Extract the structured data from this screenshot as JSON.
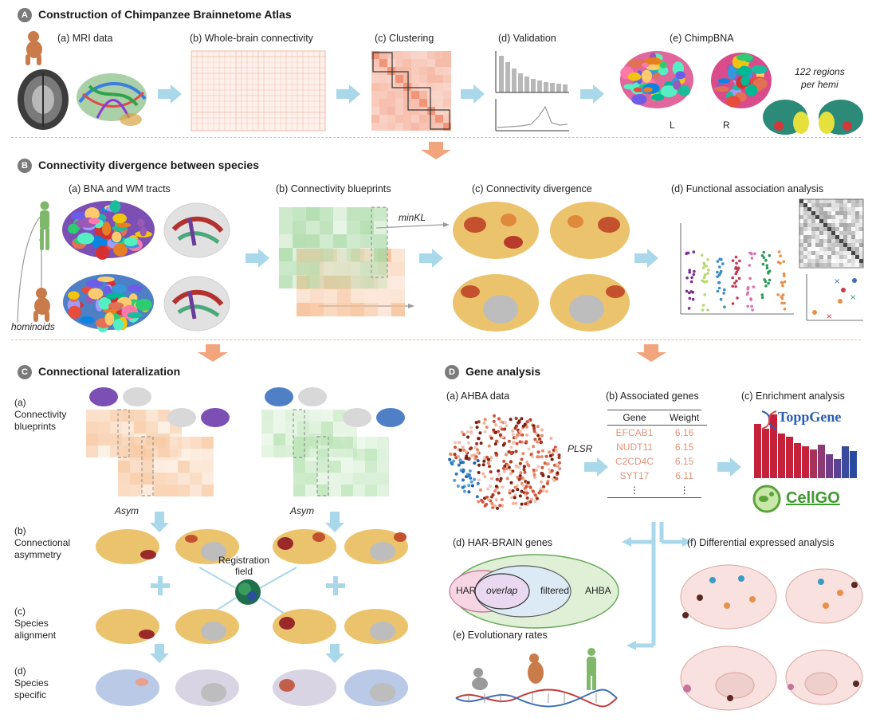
{
  "section_a": {
    "letter": "A",
    "title": "Construction of Chimpanzee Brainnetome Atlas",
    "steps": [
      "(a) MRI data",
      "(b) Whole-brain connectivity",
      "(c) Clustering",
      "(d) Validation",
      "(e) ChimpBNA"
    ],
    "regions_note_line1": "122 regions",
    "regions_note_line2": "per hemi",
    "hemi_left": "L",
    "hemi_right": "R"
  },
  "section_b": {
    "letter": "B",
    "title": "Connectivity divergence between species",
    "steps": [
      "(a) BNA and WM tracts",
      "(b) Connectivity blueprints",
      "(c) Connectivity divergence",
      "(d) Functional association analysis"
    ],
    "minkl": "minKL",
    "hominoids": "hominoids"
  },
  "section_c": {
    "letter": "C",
    "title": "Connectional lateralization",
    "step_a": "(a)\nConnectivity\nblueprints",
    "step_b": "(b)\nConnectional\nasymmetry",
    "step_c": "(c)\nSpecies\nalignment",
    "step_d": "(d)\nSpecies\nspecific",
    "asym": "Asym",
    "registration_line1": "Registration",
    "registration_line2": "field"
  },
  "section_d": {
    "letter": "D",
    "title": "Gene analysis",
    "steps": [
      "(a) AHBA data",
      "(b) Associated genes",
      "(c) Enrichment analysis",
      "(d) HAR-BRAIN genes",
      "(e) Evolutionary rates",
      "(f) Differential expressed analysis"
    ],
    "plsr": "PLSR",
    "table": {
      "headers": [
        "Gene",
        "Weight"
      ],
      "rows": [
        [
          "EFCAB1",
          "6.16"
        ],
        [
          "NUDT11",
          "6.15"
        ],
        [
          "C2CD4C",
          "6.15"
        ],
        [
          "SYT17",
          "6.11"
        ],
        [
          "⋮",
          "⋮"
        ]
      ]
    },
    "toppgene": "ToppGene",
    "cellgo": "CellGO",
    "venn": {
      "har": "HAR",
      "overlap": "overlap",
      "filtered": "filtered",
      "ahba": "AHBA"
    }
  },
  "colors": {
    "orange_arrow": "#f2a47c",
    "blue_arrow": "#a9d8ea",
    "divider": "#f0b59a",
    "gene_weight": "#e4937a"
  }
}
